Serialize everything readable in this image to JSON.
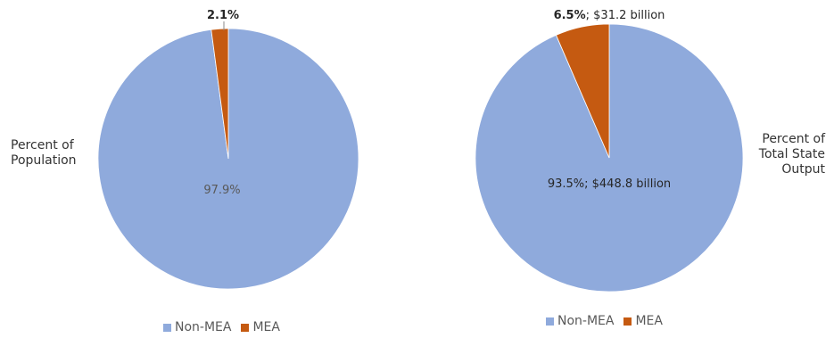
{
  "chart_data": [
    {
      "type": "pie",
      "side_label": [
        "Percent of",
        "Population"
      ],
      "slices": [
        {
          "name": "Non-MEA",
          "value": 97.9,
          "label": "97.9%",
          "label_bold": "",
          "label_rest": "97.9%"
        },
        {
          "name": "MEA",
          "value": 2.1,
          "label": "2.1%",
          "label_bold": "2.1%",
          "label_rest": ""
        }
      ],
      "legend": [
        "Non-MEA",
        "MEA"
      ],
      "legend_position": "bottom"
    },
    {
      "type": "pie",
      "side_label": [
        "Percent of",
        "Total State",
        "Output"
      ],
      "slices": [
        {
          "name": "Non-MEA",
          "value": 93.5,
          "label": "93.5%; $448.8 billion",
          "label_bold": "",
          "label_rest": "93.5%; $448.8 billion"
        },
        {
          "name": "MEA",
          "value": 6.5,
          "label": "6.5%; $31.2 billion",
          "label_bold": "6.5%",
          "label_rest": "; $31.2 billion"
        }
      ],
      "legend": [
        "Non-MEA",
        "MEA"
      ],
      "legend_position": "bottom"
    }
  ],
  "colors": {
    "Non-MEA": "#8faadc",
    "MEA": "#c55a11"
  }
}
